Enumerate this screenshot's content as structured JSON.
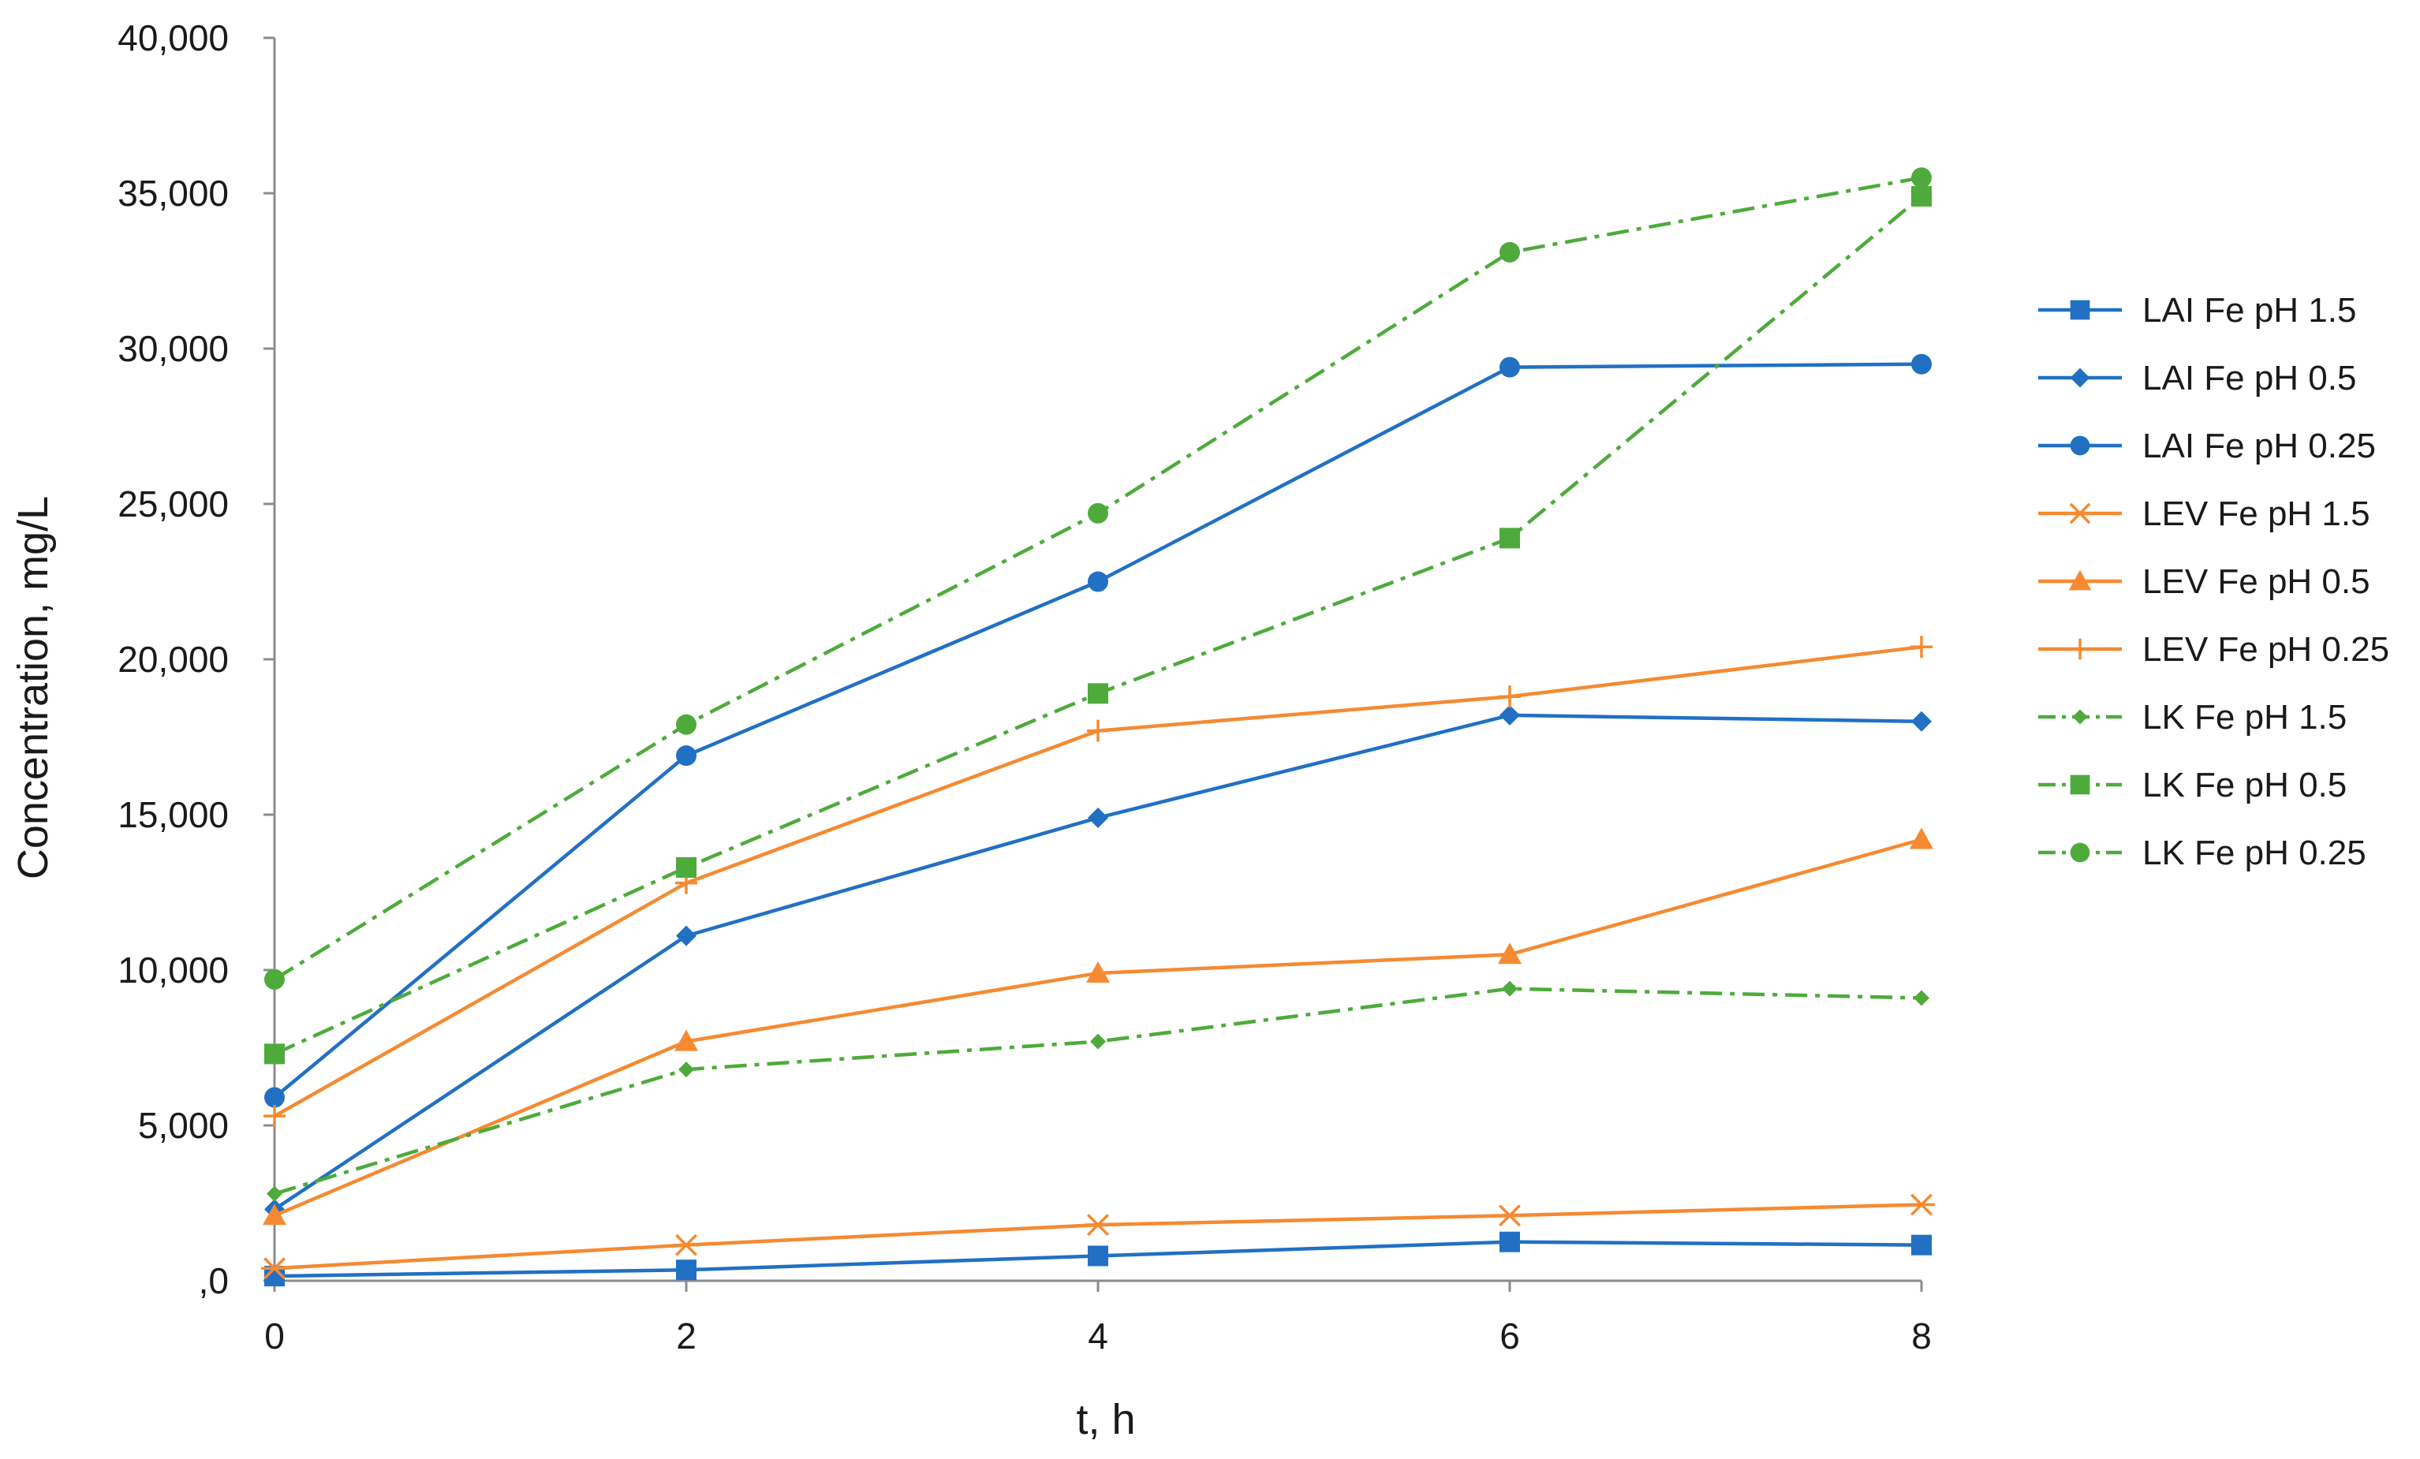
{
  "chart_data": {
    "type": "line",
    "title": "",
    "xlabel": "t, h",
    "ylabel": "Concentration, mg/L",
    "x": [
      0,
      2,
      4,
      6,
      8
    ],
    "xlim": [
      0,
      8
    ],
    "ylim": [
      0,
      40000
    ],
    "x_ticks": [
      {
        "value": 0,
        "label": "0"
      },
      {
        "value": 2,
        "label": "2"
      },
      {
        "value": 4,
        "label": "4"
      },
      {
        "value": 6,
        "label": "6"
      },
      {
        "value": 8,
        "label": "8"
      }
    ],
    "y_ticks": [
      {
        "value": 0,
        "label": ",0"
      },
      {
        "value": 5000,
        "label": "5,000"
      },
      {
        "value": 10000,
        "label": "10,000"
      },
      {
        "value": 15000,
        "label": "15,000"
      },
      {
        "value": 20000,
        "label": "20,000"
      },
      {
        "value": 25000,
        "label": "25,000"
      },
      {
        "value": 30000,
        "label": "30,000"
      },
      {
        "value": 35000,
        "label": "35,000"
      },
      {
        "value": 40000,
        "label": "40,000"
      }
    ],
    "grid": false,
    "legend_position": "right",
    "series": [
      {
        "name": "LAI Fe pH 1.5",
        "color": "#2170c4",
        "dash": "solid",
        "marker": "square",
        "values": [
          150,
          350,
          800,
          1250,
          1150
        ]
      },
      {
        "name": "LAI Fe pH 0.5",
        "color": "#2170c4",
        "dash": "solid",
        "marker": "diamond",
        "values": [
          2300,
          11100,
          14900,
          18200,
          18000
        ]
      },
      {
        "name": "LAI Fe pH 0.25",
        "color": "#2170c4",
        "dash": "solid",
        "marker": "circle",
        "values": [
          5900,
          16900,
          22500,
          29400,
          29500
        ]
      },
      {
        "name": "LEV Fe pH 1.5",
        "color": "#f58a31",
        "dash": "solid",
        "marker": "asterisk",
        "values": [
          400,
          1150,
          1800,
          2100,
          2450
        ]
      },
      {
        "name": "LEV Fe pH 0.5",
        "color": "#f58a31",
        "dash": "solid",
        "marker": "triangle",
        "values": [
          2100,
          7700,
          9900,
          10500,
          14200
        ]
      },
      {
        "name": "LEV Fe pH 0.25",
        "color": "#f58a31",
        "dash": "solid",
        "marker": "plus",
        "values": [
          5300,
          12800,
          17700,
          18800,
          20400
        ]
      },
      {
        "name": "LK Fe pH 1.5",
        "color": "#4eab3b",
        "dash": "dashdot",
        "marker": "smalldiamond",
        "values": [
          2800,
          6800,
          7700,
          9400,
          9100
        ]
      },
      {
        "name": "LK Fe pH 0.5",
        "color": "#4eab3b",
        "dash": "dashdot",
        "marker": "square",
        "values": [
          7300,
          13300,
          18900,
          23900,
          34900
        ]
      },
      {
        "name": "LK Fe pH 0.25",
        "color": "#4eab3b",
        "dash": "dashdot",
        "marker": "circle",
        "values": [
          9700,
          17900,
          24700,
          33100,
          35500
        ]
      }
    ]
  }
}
